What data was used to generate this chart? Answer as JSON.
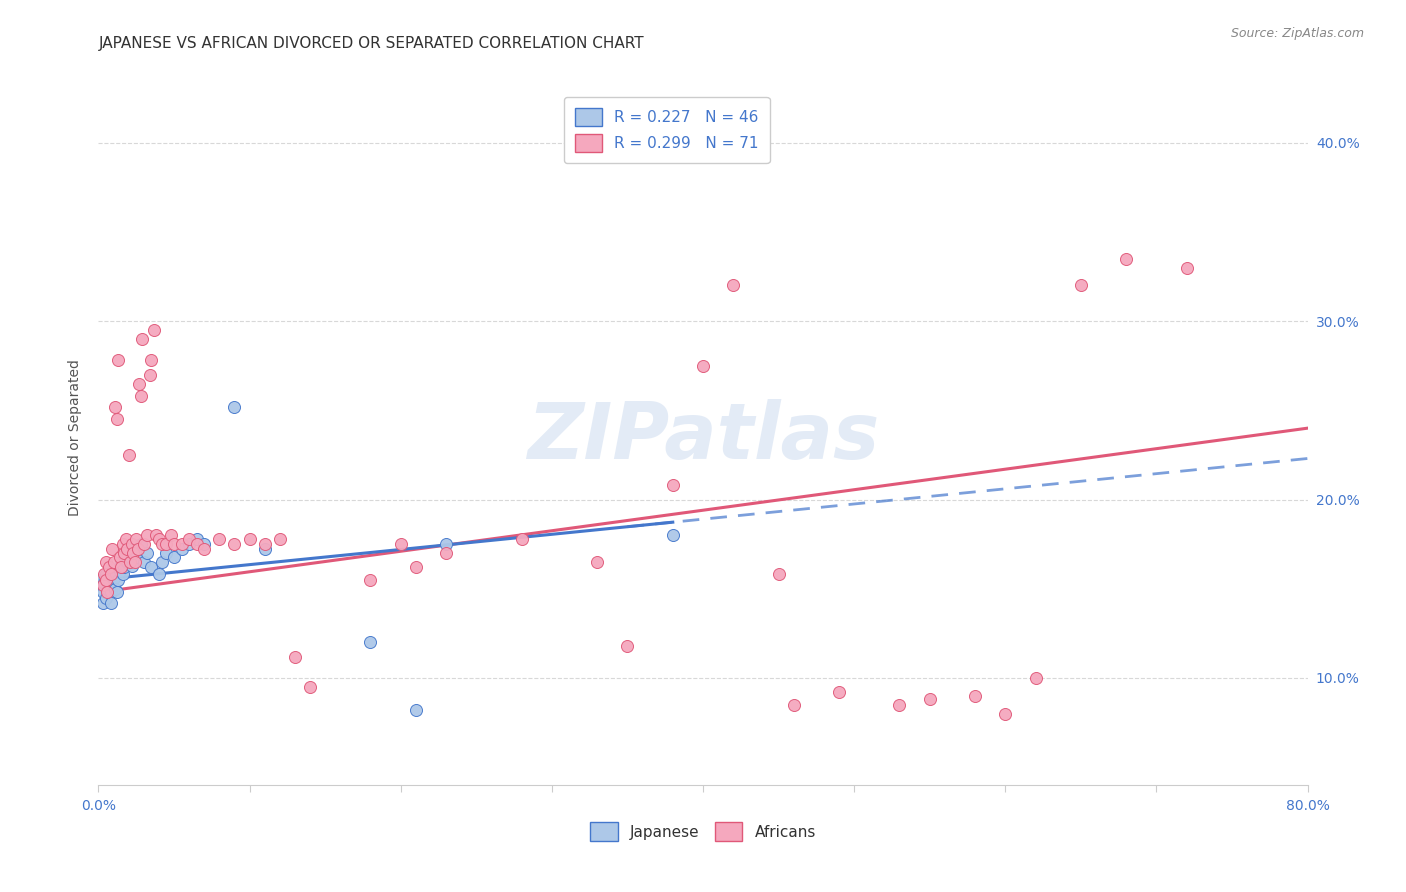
{
  "title": "JAPANESE VS AFRICAN DIVORCED OR SEPARATED CORRELATION CHART",
  "source": "Source: ZipAtlas.com",
  "ylabel": "Divorced or Separated",
  "legend_japanese": "R = 0.227   N = 46",
  "legend_africans": "R = 0.299   N = 71",
  "watermark": "ZIPatlas",
  "japanese_color": "#adc8e8",
  "african_color": "#f5a8be",
  "japanese_line_color": "#4477cc",
  "african_line_color": "#e05878",
  "background_color": "#ffffff",
  "grid_color": "#d8d8d8",
  "japanese_points": [
    [
      0.001,
      0.155
    ],
    [
      0.002,
      0.15
    ],
    [
      0.003,
      0.148
    ],
    [
      0.003,
      0.142
    ],
    [
      0.004,
      0.153
    ],
    [
      0.005,
      0.158
    ],
    [
      0.005,
      0.145
    ],
    [
      0.006,
      0.15
    ],
    [
      0.007,
      0.155
    ],
    [
      0.008,
      0.148
    ],
    [
      0.008,
      0.142
    ],
    [
      0.009,
      0.152
    ],
    [
      0.01,
      0.156
    ],
    [
      0.011,
      0.15
    ],
    [
      0.012,
      0.148
    ],
    [
      0.013,
      0.155
    ],
    [
      0.014,
      0.16
    ],
    [
      0.015,
      0.165
    ],
    [
      0.016,
      0.158
    ],
    [
      0.017,
      0.162
    ],
    [
      0.018,
      0.17
    ],
    [
      0.019,
      0.165
    ],
    [
      0.02,
      0.172
    ],
    [
      0.021,
      0.168
    ],
    [
      0.022,
      0.163
    ],
    [
      0.023,
      0.17
    ],
    [
      0.025,
      0.168
    ],
    [
      0.026,
      0.172
    ],
    [
      0.028,
      0.175
    ],
    [
      0.03,
      0.165
    ],
    [
      0.032,
      0.17
    ],
    [
      0.035,
      0.162
    ],
    [
      0.04,
      0.158
    ],
    [
      0.042,
      0.165
    ],
    [
      0.045,
      0.17
    ],
    [
      0.05,
      0.168
    ],
    [
      0.055,
      0.172
    ],
    [
      0.06,
      0.175
    ],
    [
      0.065,
      0.178
    ],
    [
      0.07,
      0.175
    ],
    [
      0.09,
      0.252
    ],
    [
      0.11,
      0.172
    ],
    [
      0.18,
      0.12
    ],
    [
      0.21,
      0.082
    ],
    [
      0.23,
      0.175
    ],
    [
      0.38,
      0.18
    ]
  ],
  "african_points": [
    [
      0.003,
      0.152
    ],
    [
      0.004,
      0.158
    ],
    [
      0.005,
      0.155
    ],
    [
      0.005,
      0.165
    ],
    [
      0.006,
      0.148
    ],
    [
      0.007,
      0.162
    ],
    [
      0.008,
      0.158
    ],
    [
      0.009,
      0.172
    ],
    [
      0.01,
      0.165
    ],
    [
      0.011,
      0.252
    ],
    [
      0.012,
      0.245
    ],
    [
      0.013,
      0.278
    ],
    [
      0.014,
      0.168
    ],
    [
      0.015,
      0.162
    ],
    [
      0.016,
      0.175
    ],
    [
      0.017,
      0.17
    ],
    [
      0.018,
      0.178
    ],
    [
      0.019,
      0.172
    ],
    [
      0.02,
      0.225
    ],
    [
      0.021,
      0.165
    ],
    [
      0.022,
      0.175
    ],
    [
      0.023,
      0.17
    ],
    [
      0.024,
      0.165
    ],
    [
      0.025,
      0.178
    ],
    [
      0.026,
      0.172
    ],
    [
      0.027,
      0.265
    ],
    [
      0.028,
      0.258
    ],
    [
      0.029,
      0.29
    ],
    [
      0.03,
      0.175
    ],
    [
      0.032,
      0.18
    ],
    [
      0.034,
      0.27
    ],
    [
      0.035,
      0.278
    ],
    [
      0.037,
      0.295
    ],
    [
      0.038,
      0.18
    ],
    [
      0.04,
      0.178
    ],
    [
      0.042,
      0.175
    ],
    [
      0.045,
      0.175
    ],
    [
      0.048,
      0.18
    ],
    [
      0.05,
      0.175
    ],
    [
      0.055,
      0.175
    ],
    [
      0.06,
      0.178
    ],
    [
      0.065,
      0.175
    ],
    [
      0.07,
      0.172
    ],
    [
      0.08,
      0.178
    ],
    [
      0.09,
      0.175
    ],
    [
      0.1,
      0.178
    ],
    [
      0.11,
      0.175
    ],
    [
      0.12,
      0.178
    ],
    [
      0.13,
      0.112
    ],
    [
      0.14,
      0.095
    ],
    [
      0.18,
      0.155
    ],
    [
      0.2,
      0.175
    ],
    [
      0.21,
      0.162
    ],
    [
      0.23,
      0.17
    ],
    [
      0.28,
      0.178
    ],
    [
      0.33,
      0.165
    ],
    [
      0.35,
      0.118
    ],
    [
      0.38,
      0.208
    ],
    [
      0.4,
      0.275
    ],
    [
      0.42,
      0.32
    ],
    [
      0.45,
      0.158
    ],
    [
      0.46,
      0.085
    ],
    [
      0.49,
      0.092
    ],
    [
      0.53,
      0.085
    ],
    [
      0.55,
      0.088
    ],
    [
      0.58,
      0.09
    ],
    [
      0.6,
      0.08
    ],
    [
      0.62,
      0.1
    ],
    [
      0.65,
      0.32
    ],
    [
      0.68,
      0.335
    ],
    [
      0.72,
      0.33
    ]
  ],
  "xlim": [
    0.0,
    0.8
  ],
  "ylim": [
    0.04,
    0.43
  ],
  "tick_color": "#4477cc",
  "label_color": "#555555",
  "source_color": "#888888",
  "watermark_color": "#c8d8ee",
  "title_fontsize": 11,
  "axis_fontsize": 10,
  "ylabel_fontsize": 10
}
